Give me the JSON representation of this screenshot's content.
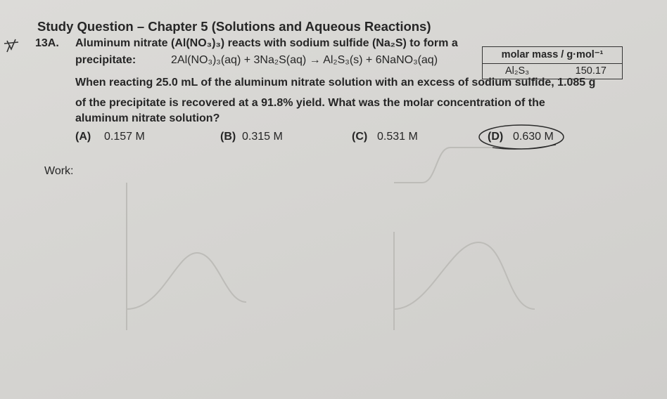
{
  "header": {
    "title": "Study Question – Chapter 5 (Solutions and Aqueous Reactions)"
  },
  "question": {
    "number": "13A.",
    "lines": [
      "Aluminum nitrate (Al(NO₃)₃) reacts with sodium sulfide (Na₂S) to form a",
      "When reacting 25.0 mL of the aluminum nitrate solution with an excess of sodium sulfide, 1.085 g",
      "of the precipitate is recovered at a 91.8% yield. What was the molar concentration of the",
      "aluminum nitrate solution?"
    ],
    "equation_label": "precipitate:",
    "equation": "2Al(NO₃)₃(aq) + 3Na₂S(aq) → Al₂S₃(s) + 6NaNO₃(aq)"
  },
  "table": {
    "header": "molar mass / g·mol⁻¹",
    "rows": [
      [
        "Al₂S₃",
        "150.17"
      ]
    ]
  },
  "choices": [
    {
      "letter": "(A)",
      "text": "0.157 M"
    },
    {
      "letter": "(B)",
      "text": "0.315 M"
    },
    {
      "letter": "(C)",
      "text": "0.531 M"
    },
    {
      "letter": "(D)",
      "text": "0.630 M"
    }
  ],
  "work_label": "Work:"
}
